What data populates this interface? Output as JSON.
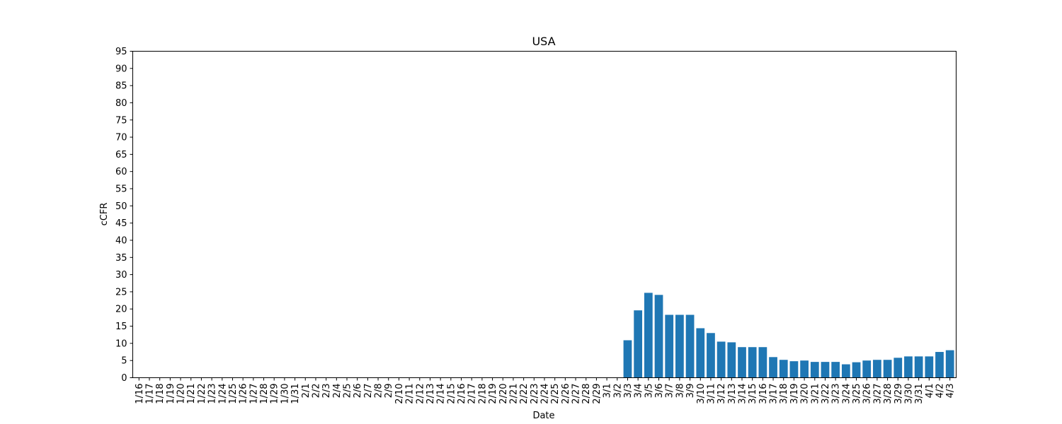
{
  "chart_data": {
    "type": "bar",
    "title": "USA",
    "xlabel": "Date",
    "ylabel": "cCFR",
    "ylim": [
      0,
      95
    ],
    "yticks": [
      0,
      5,
      10,
      15,
      20,
      25,
      30,
      35,
      40,
      45,
      50,
      55,
      60,
      65,
      70,
      75,
      80,
      85,
      90,
      95
    ],
    "grid": false,
    "bar_color": "#1f77b4",
    "categories": [
      "1/16",
      "1/17",
      "1/18",
      "1/19",
      "1/20",
      "1/21",
      "1/22",
      "1/23",
      "1/24",
      "1/25",
      "1/26",
      "1/27",
      "1/28",
      "1/29",
      "1/30",
      "1/31",
      "2/1",
      "2/2",
      "2/3",
      "2/4",
      "2/5",
      "2/6",
      "2/7",
      "2/8",
      "2/9",
      "2/10",
      "2/11",
      "2/12",
      "2/13",
      "2/14",
      "2/15",
      "2/16",
      "2/17",
      "2/18",
      "2/19",
      "2/20",
      "2/21",
      "2/22",
      "2/23",
      "2/24",
      "2/25",
      "2/26",
      "2/27",
      "2/28",
      "2/29",
      "3/1",
      "3/2",
      "3/3",
      "3/4",
      "3/5",
      "3/6",
      "3/7",
      "3/8",
      "3/9",
      "3/10",
      "3/11",
      "3/12",
      "3/13",
      "3/14",
      "3/15",
      "3/16",
      "3/17",
      "3/18",
      "3/19",
      "3/20",
      "3/21",
      "3/22",
      "3/23",
      "3/24",
      "3/25",
      "3/26",
      "3/27",
      "3/28",
      "3/29",
      "3/30",
      "3/31",
      "4/1",
      "4/2",
      "4/3"
    ],
    "values": [
      0,
      0,
      0,
      0,
      0,
      0,
      0,
      0,
      0,
      0,
      0,
      0,
      0,
      0,
      0,
      0,
      0,
      0,
      0,
      0,
      0,
      0,
      0,
      0,
      0,
      0,
      0,
      0,
      0,
      0,
      0,
      0,
      0,
      0,
      0,
      0,
      0,
      0,
      0,
      0,
      0,
      0,
      0,
      0,
      0,
      0,
      0,
      10.9,
      19.6,
      24.7,
      24.1,
      18.3,
      18.3,
      18.3,
      14.4,
      13.0,
      10.5,
      10.3,
      8.9,
      8.9,
      8.9,
      6.0,
      5.2,
      4.8,
      5.0,
      4.6,
      4.6,
      4.6,
      3.9,
      4.5,
      5.0,
      5.2,
      5.2,
      5.8,
      6.2,
      6.2,
      6.2,
      7.5,
      8.0
    ]
  }
}
